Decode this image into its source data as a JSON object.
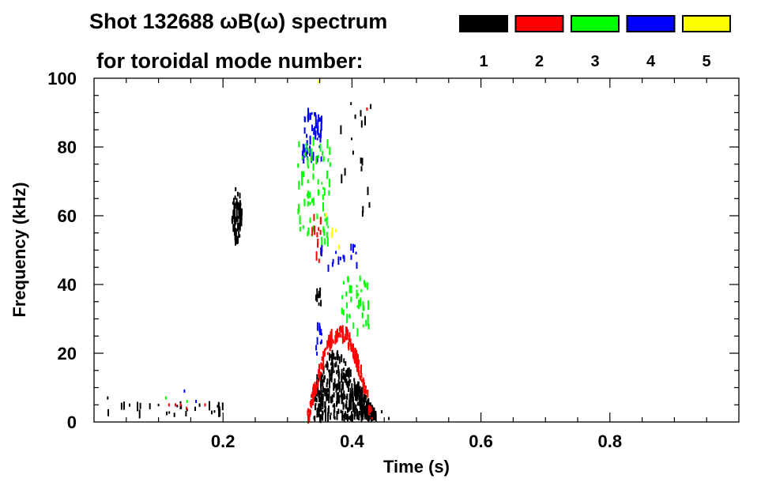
{
  "chart_data": {
    "type": "heatmap",
    "title_line1": "Shot 132688 ωB(ω) spectrum",
    "title_line2": "for toroidal mode number:",
    "xlabel": "Time (s)",
    "ylabel": "Frequency (kHz)",
    "xlim": [
      0,
      1.0
    ],
    "ylim": [
      0,
      100
    ],
    "x_ticks": [
      0.2,
      0.4,
      0.6,
      0.8
    ],
    "x_tick_labels": [
      "0.2",
      "0.4",
      "0.6",
      "0.8"
    ],
    "y_ticks": [
      0,
      20,
      40,
      60,
      80,
      100
    ],
    "y_tick_labels": [
      "0",
      "20",
      "40",
      "60",
      "80",
      "100"
    ],
    "legend": [
      {
        "label": "1",
        "color": "#000000"
      },
      {
        "label": "2",
        "color": "#ff0000"
      },
      {
        "label": "3",
        "color": "#00ff00"
      },
      {
        "label": "4",
        "color": "#0000ff"
      },
      {
        "label": "5",
        "color": "#ffff00"
      }
    ],
    "legend_placement": "top-right",
    "clusters": [
      {
        "mode": 1,
        "t": [
          0.213,
          0.228
        ],
        "f": [
          50,
          70
        ],
        "n": 70,
        "shape": "spindle"
      },
      {
        "mode": 4,
        "t": [
          0.322,
          0.352
        ],
        "f": [
          76,
          91
        ],
        "n": 60,
        "shape": "box"
      },
      {
        "mode": 3,
        "t": [
          0.315,
          0.365
        ],
        "f": [
          52,
          82
        ],
        "n": 70,
        "shape": "box"
      },
      {
        "mode": 2,
        "t": [
          0.335,
          0.352
        ],
        "f": [
          46,
          60
        ],
        "n": 12,
        "shape": "box"
      },
      {
        "mode": 1,
        "t": [
          0.34,
          0.436
        ],
        "f": [
          1,
          22
        ],
        "n": 420,
        "shape": "triangle"
      },
      {
        "mode": 2,
        "t": [
          0.33,
          0.43
        ],
        "f": [
          3,
          28
        ],
        "n": 160,
        "shape": "arch"
      },
      {
        "mode": 3,
        "t": [
          0.38,
          0.425
        ],
        "f": [
          26,
          42
        ],
        "n": 40,
        "shape": "box"
      },
      {
        "mode": 4,
        "t": [
          0.345,
          0.41
        ],
        "f": [
          44,
          52
        ],
        "n": 18,
        "shape": "box"
      },
      {
        "mode": 4,
        "t": [
          0.34,
          0.352
        ],
        "f": [
          18,
          28
        ],
        "n": 10,
        "shape": "box"
      },
      {
        "mode": 1,
        "t": [
          0.342,
          0.352
        ],
        "f": [
          34,
          38
        ],
        "n": 10,
        "shape": "box"
      },
      {
        "mode": 1,
        "t": [
          0.38,
          0.43
        ],
        "f": [
          60,
          95
        ],
        "n": 18,
        "shape": "box"
      },
      {
        "mode": 5,
        "t": [
          0.35,
          0.4
        ],
        "f": [
          48,
          64
        ],
        "n": 5,
        "shape": "box"
      },
      {
        "mode": 1,
        "t": [
          0.02,
          0.2
        ],
        "f": [
          2,
          5
        ],
        "n": 30,
        "shape": "box"
      }
    ],
    "points": [
      {
        "mode": 1,
        "t": 0.02,
        "f": 7
      },
      {
        "mode": 3,
        "t": 0.11,
        "f": 7
      },
      {
        "mode": 2,
        "t": 0.115,
        "f": 5
      },
      {
        "mode": 2,
        "t": 0.125,
        "f": 5
      },
      {
        "mode": 2,
        "t": 0.133,
        "f": 5
      },
      {
        "mode": 4,
        "t": 0.139,
        "f": 9
      },
      {
        "mode": 3,
        "t": 0.143,
        "f": 6
      },
      {
        "mode": 4,
        "t": 0.157,
        "f": 6
      },
      {
        "mode": 2,
        "t": 0.171,
        "f": 5
      },
      {
        "mode": 2,
        "t": 0.142,
        "f": 4
      },
      {
        "mode": 5,
        "t": 0.347,
        "f": 99
      },
      {
        "mode": 2,
        "t": 0.422,
        "f": 91
      },
      {
        "mode": 1,
        "t": 0.456,
        "f": 1
      },
      {
        "mode": 1,
        "t": 0.445,
        "f": 3
      }
    ]
  }
}
